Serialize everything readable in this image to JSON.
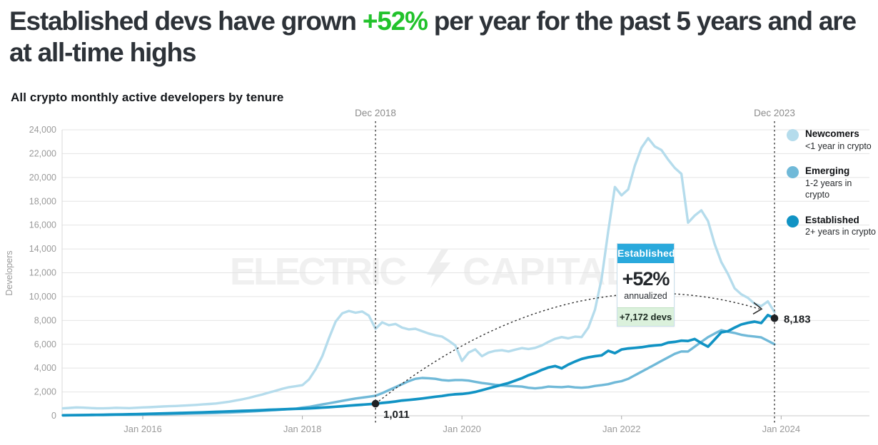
{
  "title": {
    "pre": "Established devs have grown ",
    "highlight": "+52%",
    "post": " per year for the past 5 years and are at all-time highs",
    "highlight_color": "#21c22b"
  },
  "subtitle": "All crypto monthly active developers by tenure",
  "watermark": {
    "left": "ELECTRIC",
    "right": "CAPITAL",
    "icon": "lightning-bolt-icon"
  },
  "legend": [
    {
      "name": "Newcomers",
      "desc": "<1 year in crypto",
      "color": "#b5dcec"
    },
    {
      "name": "Emerging",
      "desc": "1-2 years in crypto",
      "color": "#70b9d8"
    },
    {
      "name": "Established",
      "desc": "2+ years in crypto",
      "color": "#1193c4"
    }
  ],
  "callout": {
    "header": "Established",
    "header_bg": "#2aa9dc",
    "value": "+52%",
    "caption": "annualized",
    "footer": "+7,172 devs",
    "footer_bg": "#dbf1dc"
  },
  "chart_data": {
    "type": "line",
    "title": "All crypto monthly active developers by tenure",
    "ylabel": "Developers",
    "ylim": [
      0,
      24000
    ],
    "ytick_step": 2000,
    "ytick_labels": [
      "0",
      "2,000",
      "4,000",
      "6,000",
      "8,000",
      "10,000",
      "12,000",
      "14,000",
      "16,000",
      "18,000",
      "20,000",
      "22,000",
      "24,000"
    ],
    "x_start": "Jan 2015",
    "x_end": "Dec 2023",
    "xticks": [
      "Jan 2016",
      "Jan 2018",
      "Jan 2020",
      "Jan 2022",
      "Jan 2024"
    ],
    "xtick_month_index": [
      12,
      36,
      60,
      84,
      108
    ],
    "grid": true,
    "legend_position": "top-right",
    "series": [
      {
        "name": "Newcomers",
        "color": "#b5dcec",
        "values": [
          620,
          660,
          700,
          680,
          650,
          630,
          620,
          640,
          670,
          650,
          640,
          670,
          700,
          720,
          750,
          780,
          800,
          820,
          850,
          880,
          910,
          950,
          990,
          1030,
          1100,
          1180,
          1280,
          1380,
          1500,
          1650,
          1790,
          1950,
          2100,
          2270,
          2400,
          2480,
          2570,
          3050,
          3900,
          5000,
          6500,
          7900,
          8600,
          8800,
          8650,
          8750,
          8400,
          7300,
          7840,
          7600,
          7700,
          7400,
          7250,
          7300,
          7100,
          6900,
          6750,
          6650,
          6300,
          5900,
          4600,
          5300,
          5570,
          5000,
          5300,
          5450,
          5500,
          5400,
          5550,
          5680,
          5600,
          5700,
          5900,
          6200,
          6460,
          6600,
          6500,
          6640,
          6600,
          7400,
          8900,
          11500,
          15500,
          19200,
          18500,
          19000,
          21000,
          22500,
          23300,
          22600,
          22300,
          21500,
          20800,
          20300,
          16200,
          16800,
          17240,
          16340,
          14400,
          12900,
          11900,
          10700,
          10200,
          9900,
          9400,
          9200,
          9600,
          8700
        ]
      },
      {
        "name": "Emerging",
        "color": "#70b9d8",
        "values": [
          30,
          35,
          40,
          45,
          50,
          55,
          60,
          65,
          70,
          75,
          80,
          85,
          95,
          105,
          115,
          125,
          135,
          150,
          160,
          175,
          190,
          200,
          215,
          230,
          250,
          270,
          295,
          320,
          350,
          380,
          410,
          445,
          480,
          520,
          560,
          600,
          680,
          750,
          850,
          950,
          1050,
          1150,
          1250,
          1350,
          1450,
          1520,
          1600,
          1680,
          1900,
          2150,
          2400,
          2650,
          2900,
          3100,
          3170,
          3150,
          3100,
          3000,
          2950,
          3000,
          3000,
          2950,
          2850,
          2750,
          2680,
          2600,
          2550,
          2500,
          2480,
          2450,
          2350,
          2300,
          2350,
          2450,
          2420,
          2400,
          2450,
          2380,
          2350,
          2400,
          2500,
          2570,
          2650,
          2800,
          2900,
          3100,
          3400,
          3700,
          4000,
          4300,
          4600,
          4900,
          5200,
          5400,
          5390,
          5800,
          6200,
          6600,
          6900,
          7180,
          7050,
          6950,
          6800,
          6710,
          6650,
          6580,
          6290,
          6000
        ]
      },
      {
        "name": "Established",
        "color": "#1193c4",
        "values": [
          40,
          50,
          55,
          60,
          70,
          80,
          85,
          95,
          105,
          115,
          125,
          140,
          150,
          165,
          180,
          195,
          210,
          225,
          240,
          255,
          270,
          290,
          310,
          330,
          350,
          370,
          390,
          410,
          430,
          450,
          475,
          500,
          520,
          540,
          560,
          580,
          600,
          620,
          650,
          690,
          720,
          760,
          800,
          850,
          890,
          930,
          970,
          1011,
          1080,
          1130,
          1200,
          1280,
          1330,
          1380,
          1450,
          1520,
          1600,
          1660,
          1750,
          1800,
          1830,
          1900,
          2000,
          2150,
          2300,
          2450,
          2600,
          2750,
          2950,
          3150,
          3400,
          3600,
          3850,
          4050,
          4170,
          3980,
          4300,
          4550,
          4770,
          4900,
          5000,
          5070,
          5450,
          5250,
          5560,
          5650,
          5700,
          5750,
          5840,
          5900,
          5950,
          6140,
          6200,
          6300,
          6280,
          6440,
          6100,
          5800,
          6400,
          7000,
          7100,
          7400,
          7660,
          7800,
          7900,
          7780,
          8450,
          8183
        ]
      }
    ],
    "markers": [
      {
        "line_label": "Dec 2018",
        "label": "1,011",
        "value": 1011,
        "month_index": 47,
        "series": "Established"
      },
      {
        "line_label": "Dec 2023",
        "label": "8,183",
        "value": 8183,
        "month_index": 107,
        "series": "Established"
      }
    ]
  }
}
